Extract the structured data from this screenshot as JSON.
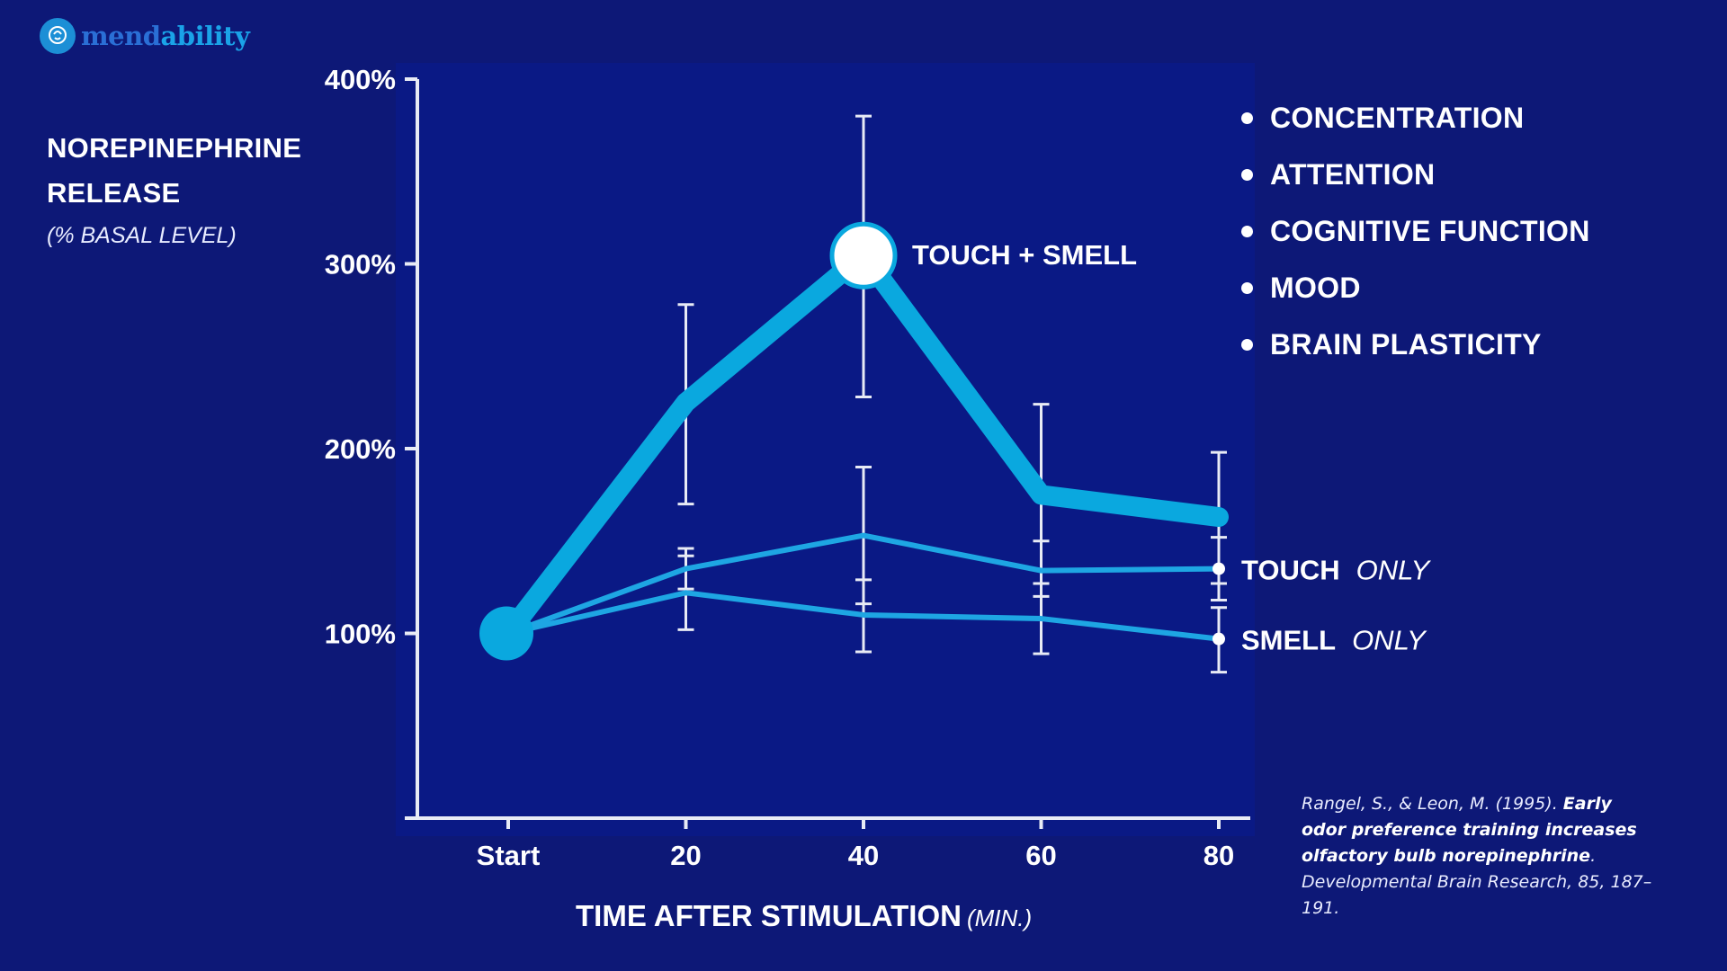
{
  "brand": {
    "name_part1": "mend",
    "name_part2": "ability",
    "icon": "brain-head-icon",
    "colors": {
      "primary": "#2a6fd6",
      "accent": "#1aa3e8"
    }
  },
  "background_color": "#0d1877",
  "plot_background_color": "#0a1985",
  "y_axis_title": {
    "line1": "NOREPINEPHRINE",
    "line2": "RELEASE",
    "unit": "(% BASAL LEVEL)"
  },
  "x_axis_title": {
    "text": "TIME AFTER STIMULATION",
    "unit": "(MIN.)"
  },
  "benefits": [
    "CONCENTRATION",
    "ATTENTION",
    "COGNITIVE FUNCTION",
    "MOOD",
    "BRAIN PLASTICITY"
  ],
  "citation": {
    "authors": "Rangel, S., & Leon, M. (1995).",
    "title": "Early odor preference training increases olfactory bulb norepinephrine",
    "source": ". Developmental Brain Research, 85, 187– 191."
  },
  "chart_data": {
    "type": "line",
    "categories": [
      "Start",
      "20",
      "40",
      "60",
      "80"
    ],
    "y_tick_labels": [
      "100%",
      "200%",
      "300%",
      "400%"
    ],
    "y_ticks": [
      100,
      200,
      300,
      400
    ],
    "ylim": [
      0,
      400
    ],
    "grid": false,
    "legend": "inline labels at right end of lines",
    "series": [
      {
        "name": "TOUCH + SMELL",
        "values": [
          100,
          225,
          305,
          175,
          163
        ],
        "error_low": [
          null,
          170,
          228,
          127,
          127
        ],
        "error_high": [
          null,
          278,
          380,
          224,
          198
        ],
        "color": "#0aa8df"
      },
      {
        "name": "TOUCH",
        "name_suffix": "ONLY",
        "values": [
          100,
          135,
          153,
          134,
          135
        ],
        "error_low": [
          null,
          124,
          116,
          120,
          118
        ],
        "error_high": [
          null,
          146,
          190,
          150,
          152
        ],
        "color": "#1ea6e3"
      },
      {
        "name": "SMELL",
        "name_suffix": "ONLY",
        "values": [
          100,
          122,
          110,
          108,
          97
        ],
        "error_low": [
          null,
          102,
          90,
          89,
          79
        ],
        "error_high": [
          null,
          142,
          129,
          127,
          114
        ],
        "color": "#1ea6e3"
      }
    ]
  }
}
